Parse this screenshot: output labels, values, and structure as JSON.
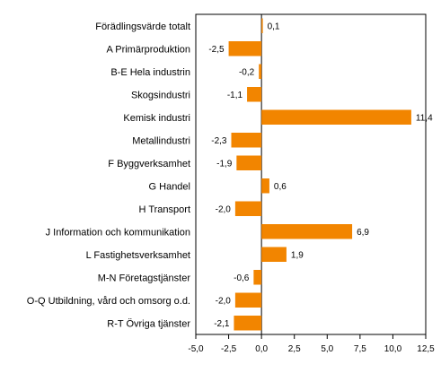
{
  "chart_data": {
    "type": "bar",
    "orientation": "horizontal",
    "categories": [
      "Förädlingsvärde totalt",
      "A Primärproduktion",
      "B-E Hela industrin",
      "Skogsindustri",
      "Kemisk industri",
      "Metallindustri",
      "F Byggverksamhet",
      "G Handel",
      "H Transport",
      "J Information och kommunikation",
      "L Fastighetsverksamhet",
      "M-N Företagstjänster",
      "O-Q Utbildning, vård och omsorg o.d.",
      "R-T Övriga tjänster"
    ],
    "values": [
      0.1,
      -2.5,
      -0.2,
      -1.1,
      11.4,
      -2.3,
      -1.9,
      0.6,
      -2.0,
      6.9,
      1.9,
      -0.6,
      -2.0,
      -2.1
    ],
    "value_labels": [
      "0,1",
      "-2,5",
      "-0,2",
      "-1,1",
      "11,4",
      "-2,3",
      "-1,9",
      "0,6",
      "-2,0",
      "6,9",
      "1,9",
      "-0,6",
      "-2,0",
      "-2,1"
    ],
    "xlim": [
      -5.0,
      12.5
    ],
    "xticks": [
      -5.0,
      -2.5,
      0.0,
      2.5,
      5.0,
      7.5,
      10.0,
      12.5
    ],
    "xtick_labels": [
      "-5,0",
      "-2,5",
      "0,0",
      "2,5",
      "5,0",
      "7,5",
      "10,0",
      "12,5"
    ],
    "grid": false,
    "bar_color": "#f28500",
    "axis_color": "#000000"
  }
}
